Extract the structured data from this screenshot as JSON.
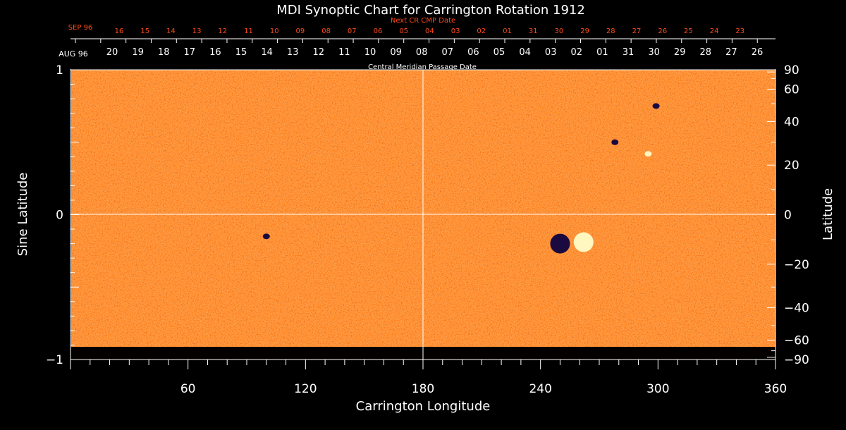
{
  "chart_data": {
    "type": "heatmap",
    "title": "MDI Synoptic Chart for Carrington Rotation 1912",
    "xlabel": "Carrington Longitude",
    "ylabel_left": "Sine Latitude",
    "ylabel_right": "Latitude",
    "xlim": [
      0,
      360
    ],
    "ylim": [
      -1,
      1
    ],
    "x_ticks": [
      60,
      120,
      180,
      240,
      300,
      360
    ],
    "y_left_ticks": [
      1,
      0,
      -1
    ],
    "y_right_ticks": [
      90,
      60,
      40,
      20,
      0,
      -20,
      -40,
      -60,
      -90
    ],
    "guide_lines": {
      "vertical_longitude": 180,
      "horizontal_sine_latitude": 0
    },
    "top_axis": {
      "label": "Central Meridian Passage Date",
      "month_label": "AUG 96",
      "dates": [
        "20",
        "19",
        "18",
        "17",
        "16",
        "15",
        "14",
        "13",
        "12",
        "11",
        "10",
        "09",
        "08",
        "07",
        "06",
        "05",
        "04",
        "03",
        "02",
        "01",
        "31",
        "30",
        "29",
        "28",
        "27",
        "26"
      ]
    },
    "next_axis": {
      "label": "Next CR CMP Date",
      "month_label": "SEP 96",
      "dates": [
        "16",
        "15",
        "14",
        "13",
        "12",
        "11",
        "10",
        "09",
        "08",
        "07",
        "06",
        "05",
        "04",
        "03",
        "02",
        "01",
        "31",
        "30",
        "29",
        "28",
        "27",
        "26",
        "25",
        "24",
        "23"
      ]
    },
    "features": [
      {
        "kind": "negative-polarity",
        "longitude": 250,
        "sine_latitude": -0.2
      },
      {
        "kind": "positive-polarity",
        "longitude": 262,
        "sine_latitude": -0.19
      },
      {
        "kind": "negative-polarity",
        "longitude": 278,
        "sine_latitude": 0.5
      },
      {
        "kind": "positive-polarity",
        "longitude": 295,
        "sine_latitude": 0.42
      },
      {
        "kind": "negative-polarity",
        "longitude": 100,
        "sine_latitude": -0.15
      },
      {
        "kind": "negative-polarity",
        "longitude": 299,
        "sine_latitude": 0.75
      }
    ],
    "colors": {
      "background": "#000000",
      "field_base": "#ff5a00",
      "positive": "#fff6c0",
      "negative": "#1a0a40",
      "axis": "#ffffff",
      "next_axis": "#ff4a1a"
    }
  }
}
